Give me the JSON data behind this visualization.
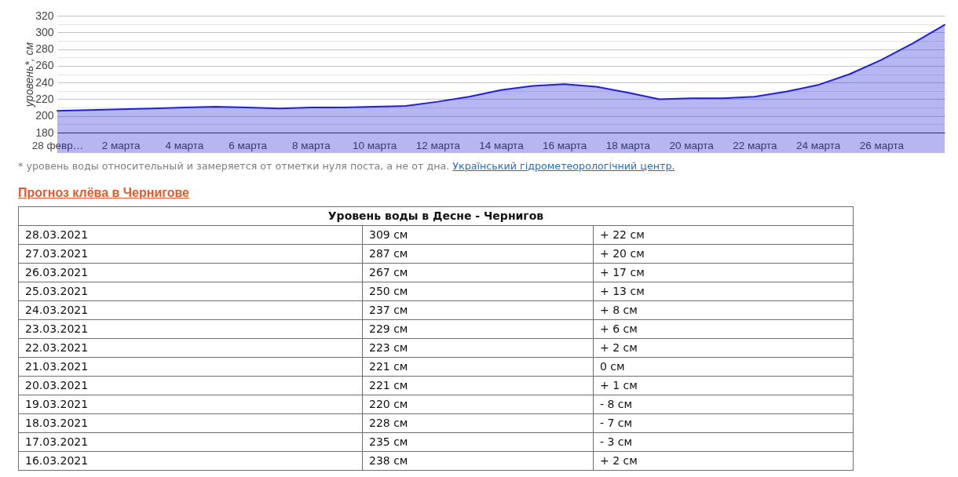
{
  "chart_data": {
    "type": "area",
    "ylabel": "уровень*, см",
    "categories": [
      "28 февр…",
      null,
      "2 марта",
      null,
      "4 марта",
      null,
      "6 марта",
      null,
      "8 марта",
      null,
      "10 марта",
      null,
      "12 марта",
      null,
      "14 марта",
      null,
      "16 марта",
      null,
      "18 марта",
      null,
      "20 марта",
      null,
      "22 марта",
      null,
      "24 марта",
      null,
      "26 марта",
      null,
      null
    ],
    "values": [
      206,
      207,
      208,
      209,
      210,
      211,
      210,
      209,
      210,
      210,
      211,
      212,
      217,
      223,
      231,
      236,
      238,
      235,
      228,
      220,
      221,
      221,
      223,
      229,
      237,
      250,
      267,
      287,
      309
    ],
    "color": "#2020d8",
    "ylim": [
      180,
      320
    ],
    "yticks": [
      180,
      {
        "value": 190,
        "label": null
      },
      200,
      {
        "value": 210,
        "label": null
      },
      220,
      {
        "value": 230,
        "label": null
      },
      240,
      {
        "value": 250,
        "label": null
      },
      260,
      {
        "value": 270,
        "label": null
      },
      280,
      {
        "value": 290,
        "label": null
      },
      300,
      {
        "value": 310,
        "label": null
      },
      320
    ],
    "grid": "y",
    "annotations": [
      "* уровень воды относительный и замеряется от отметки нуля поста, а не от дна.",
      "Український гідрометеорологічний центр.",
      "Прогноз клёва в Чернигове",
      "Уровень воды в Десне - Чернигов",
      "28.03.2021",
      "309 см",
      "+ 22 см",
      "27.03.2021",
      "287 см",
      "+ 20 см",
      "26.03.2021",
      "267 см",
      "+ 17 см",
      "25.03.2021",
      "250 см",
      "+ 13 см",
      "24.03.2021",
      "237 см",
      "+ 8 см",
      "23.03.2021",
      "229 см",
      "+ 6 см",
      "22.03.2021",
      "223 см",
      "+ 2 см",
      "21.03.2021",
      "221 см",
      "0 см",
      "20.03.2021",
      "221 см",
      "+ 1 см",
      "19.03.2021",
      "220 см",
      "- 8 см",
      "18.03.2021",
      "228 см",
      "- 7 см",
      "17.03.2021",
      "235 см",
      "- 3 см",
      "16.03.2021",
      "238 см",
      "+ 2 см"
    ]
  }
}
